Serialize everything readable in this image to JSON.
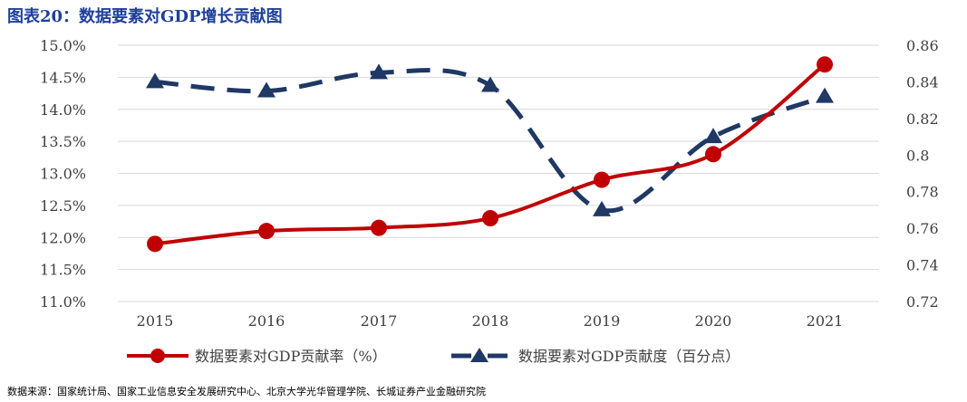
{
  "title": "图表20：数据要素对GDP增长贡献图",
  "source": "数据来源：国家统计局、国家工业信息安全发展研究中心、北京大学光华管理学院、长城证券产业金融研究院",
  "colors": {
    "rate": "#c00000",
    "contribution": "#1f3864",
    "title": "#1f3f99",
    "grid": "#d9d9d9"
  },
  "chart_data": {
    "type": "line",
    "x": [
      "2015",
      "2016",
      "2017",
      "2018",
      "2019",
      "2020",
      "2021"
    ],
    "y_left": {
      "min": 11.0,
      "max": 15.0,
      "ticks": [
        "11.0%",
        "11.5%",
        "12.0%",
        "12.5%",
        "13.0%",
        "13.5%",
        "14.0%",
        "14.5%",
        "15.0%"
      ]
    },
    "y_right": {
      "min": 0.72,
      "max": 0.86,
      "ticks": [
        "0.72",
        "0.74",
        "0.76",
        "0.78",
        "0.8",
        "0.82",
        "0.84",
        "0.86"
      ]
    },
    "series": [
      {
        "name": "数据要素对GDP贡献率（%）",
        "axis": "left",
        "style": "solid",
        "marker": "circle",
        "color": "#c00000",
        "values": [
          11.9,
          12.1,
          12.15,
          12.3,
          12.9,
          13.3,
          14.7
        ]
      },
      {
        "name": "数据要素对GDP贡献度（百分点）",
        "axis": "right",
        "style": "dashed",
        "marker": "triangle",
        "color": "#1f3864",
        "values": [
          0.84,
          0.835,
          0.845,
          0.838,
          0.77,
          0.81,
          0.832
        ]
      }
    ],
    "grid": "horizontal",
    "legend": "bottom"
  }
}
